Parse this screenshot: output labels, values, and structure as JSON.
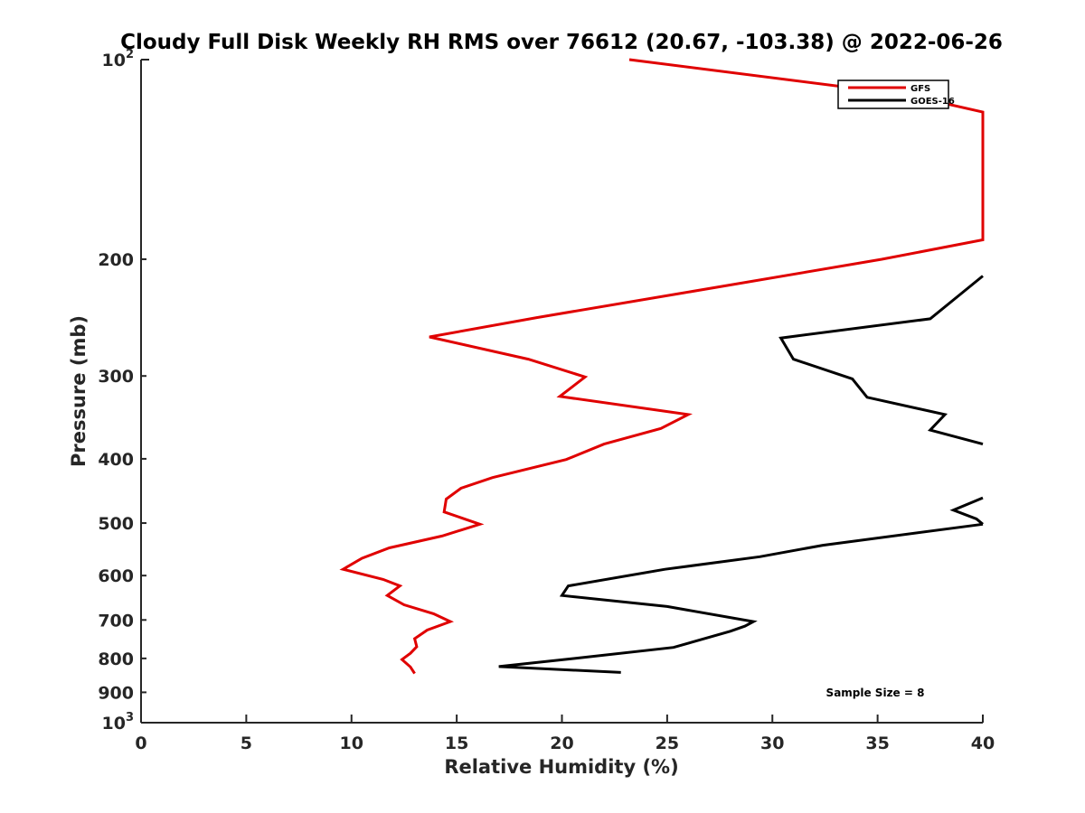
{
  "chart_data": {
    "type": "line",
    "title": "Cloudy Full Disk Weekly RH RMS over 76612 (20.67, -103.38) @ 2022-06-26",
    "xlabel": "Relative Humidity (%)",
    "ylabel": "Pressure (mb)",
    "xlim": [
      0,
      40
    ],
    "ylim": [
      100,
      1000
    ],
    "y_scale": "log",
    "y_reversed": true,
    "x_ticks": [
      "0",
      "5",
      "10",
      "15",
      "20",
      "25",
      "30",
      "35",
      "40"
    ],
    "y_ticks": [
      {
        "value": 100,
        "base": "10",
        "exp": "2"
      },
      {
        "value": 200,
        "label": "200"
      },
      {
        "value": 300,
        "label": "300"
      },
      {
        "value": 400,
        "label": "400"
      },
      {
        "value": 500,
        "label": "500"
      },
      {
        "value": 600,
        "label": "600"
      },
      {
        "value": 700,
        "label": "700"
      },
      {
        "value": 800,
        "label": "800"
      },
      {
        "value": 900,
        "label": "900"
      },
      {
        "value": 1000,
        "base": "10",
        "exp": "3"
      }
    ],
    "grid": false,
    "legend_position": "top-right",
    "annotation": "Sample Size = 8",
    "series": [
      {
        "name": "GFS",
        "color": "#e00000",
        "points": [
          [
            23.2,
            100
          ],
          [
            36.4,
            113
          ],
          [
            40.0,
            120
          ],
          [
            40.0,
            187
          ],
          [
            35.2,
            200
          ],
          [
            25.7,
            225
          ],
          [
            18.8,
            245
          ],
          [
            13.7,
            262
          ],
          [
            18.4,
            283
          ],
          [
            21.1,
            301
          ],
          [
            19.9,
            322
          ],
          [
            26.0,
            343
          ],
          [
            24.7,
            360
          ],
          [
            22.0,
            380
          ],
          [
            20.2,
            401
          ],
          [
            16.7,
            427
          ],
          [
            15.2,
            443
          ],
          [
            14.5,
            460
          ],
          [
            14.4,
            481
          ],
          [
            16.1,
            502
          ],
          [
            14.3,
            523
          ],
          [
            11.8,
            545
          ],
          [
            10.5,
            565
          ],
          [
            9.6,
            587
          ],
          [
            11.5,
            608
          ],
          [
            12.3,
            622
          ],
          [
            11.7,
            643
          ],
          [
            12.5,
            664
          ],
          [
            13.9,
            685
          ],
          [
            14.7,
            704
          ],
          [
            13.6,
            725
          ],
          [
            13.0,
            747
          ],
          [
            13.1,
            768
          ],
          [
            12.8,
            786
          ],
          [
            12.4,
            803
          ],
          [
            12.8,
            824
          ],
          [
            13.0,
            843
          ]
        ]
      },
      {
        "name": "GOES-16",
        "color": "#000000",
        "points": [
          [
            40.0,
            212
          ],
          [
            39.0,
            225
          ],
          [
            37.5,
            246
          ],
          [
            30.4,
            263
          ],
          [
            31.0,
            283
          ],
          [
            33.8,
            303
          ],
          [
            34.5,
            323
          ],
          [
            38.2,
            343
          ],
          [
            37.5,
            362
          ],
          [
            40.0,
            380
          ],
          null,
          [
            40.0,
            458
          ],
          [
            38.6,
            478
          ],
          [
            39.7,
            493
          ],
          [
            40.0,
            502
          ],
          null,
          [
            40.0,
            502
          ],
          [
            32.4,
            540
          ],
          [
            29.4,
            562
          ],
          [
            24.9,
            587
          ],
          [
            20.3,
            622
          ],
          [
            20.0,
            643
          ],
          [
            25.0,
            668
          ],
          [
            29.1,
            704
          ],
          [
            28.7,
            715
          ],
          [
            28.0,
            728
          ],
          [
            25.3,
            770
          ],
          [
            20.6,
            800
          ],
          [
            17.0,
            823
          ],
          [
            22.8,
            840
          ]
        ]
      }
    ]
  }
}
